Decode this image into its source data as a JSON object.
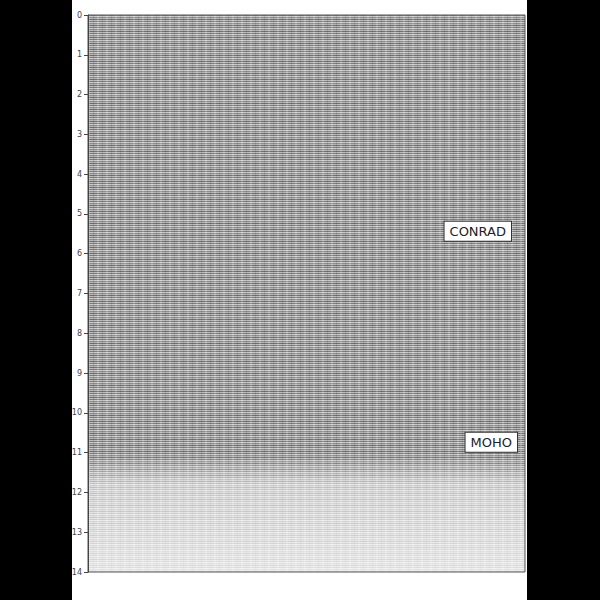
{
  "chart_data": {
    "type": "seismic_section",
    "ylim": [
      0,
      14
    ],
    "yticks": [
      0,
      1,
      2,
      3,
      4,
      5,
      6,
      7,
      8,
      9,
      10,
      11,
      12,
      13,
      14
    ],
    "tick_labels": "y",
    "grid": false,
    "annotations": [
      {
        "text": "CONRAD",
        "y": 5.4
      },
      {
        "text": "MOHO",
        "y": 10.7
      }
    ]
  }
}
